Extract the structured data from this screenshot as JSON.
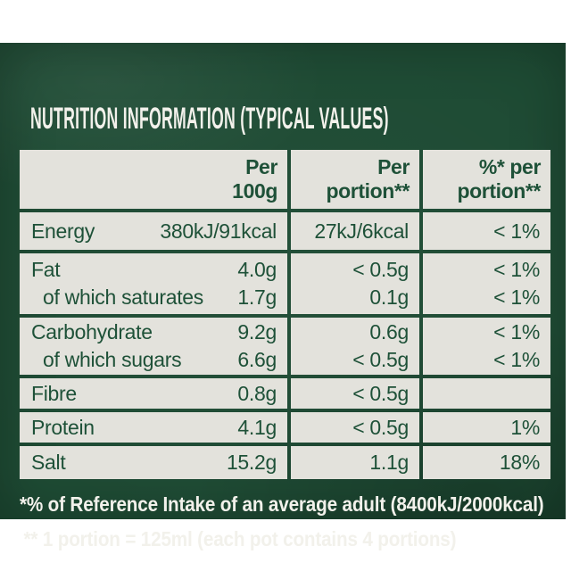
{
  "title": "NUTRITION INFORMATION (TYPICAL VALUES)",
  "table": {
    "columns": [
      {
        "line1": "Per",
        "line2": "100g"
      },
      {
        "line1": "Per",
        "line2": "portion**"
      },
      {
        "line1": "%* per",
        "line2": "portion**"
      }
    ],
    "rows": [
      {
        "lines": [
          {
            "label": "Energy",
            "per100g": "380kJ/91kcal",
            "per_portion": "27kJ/6kcal",
            "pct_portion": "< 1%"
          }
        ]
      },
      {
        "lines": [
          {
            "label": "Fat",
            "per100g": "4.0g",
            "per_portion": "< 0.5g",
            "pct_portion": "< 1%"
          },
          {
            "label": "of which saturates",
            "per100g": "1.7g",
            "per_portion": "0.1g",
            "pct_portion": "< 1%"
          }
        ]
      },
      {
        "lines": [
          {
            "label": "Carbohydrate",
            "per100g": "9.2g",
            "per_portion": "0.6g",
            "pct_portion": "< 1%"
          },
          {
            "label": "of which sugars",
            "per100g": "6.6g",
            "per_portion": "< 0.5g",
            "pct_portion": "< 1%"
          }
        ]
      },
      {
        "lines": [
          {
            "label": "Fibre",
            "per100g": "0.8g",
            "per_portion": "< 0.5g",
            "pct_portion": ""
          }
        ]
      },
      {
        "lines": [
          {
            "label": "Protein",
            "per100g": "4.1g",
            "per_portion": "< 0.5g",
            "pct_portion": "1%"
          }
        ]
      },
      {
        "lines": [
          {
            "label": "Salt",
            "per100g": "15.2g",
            "per_portion": "1.1g",
            "pct_portion": "18%"
          }
        ]
      }
    ]
  },
  "footnotes": {
    "reference_intake": "*% of Reference Intake of an average adult (8400kJ/2000kcal)",
    "portion_definition": "** 1 portion = 125ml (each pot contains 4 portions)"
  },
  "colors": {
    "panel_green": "#1d4a33",
    "cell_gray": "#e3e2dc",
    "text_green": "#1e5138",
    "text_white": "#f2f1eb"
  }
}
